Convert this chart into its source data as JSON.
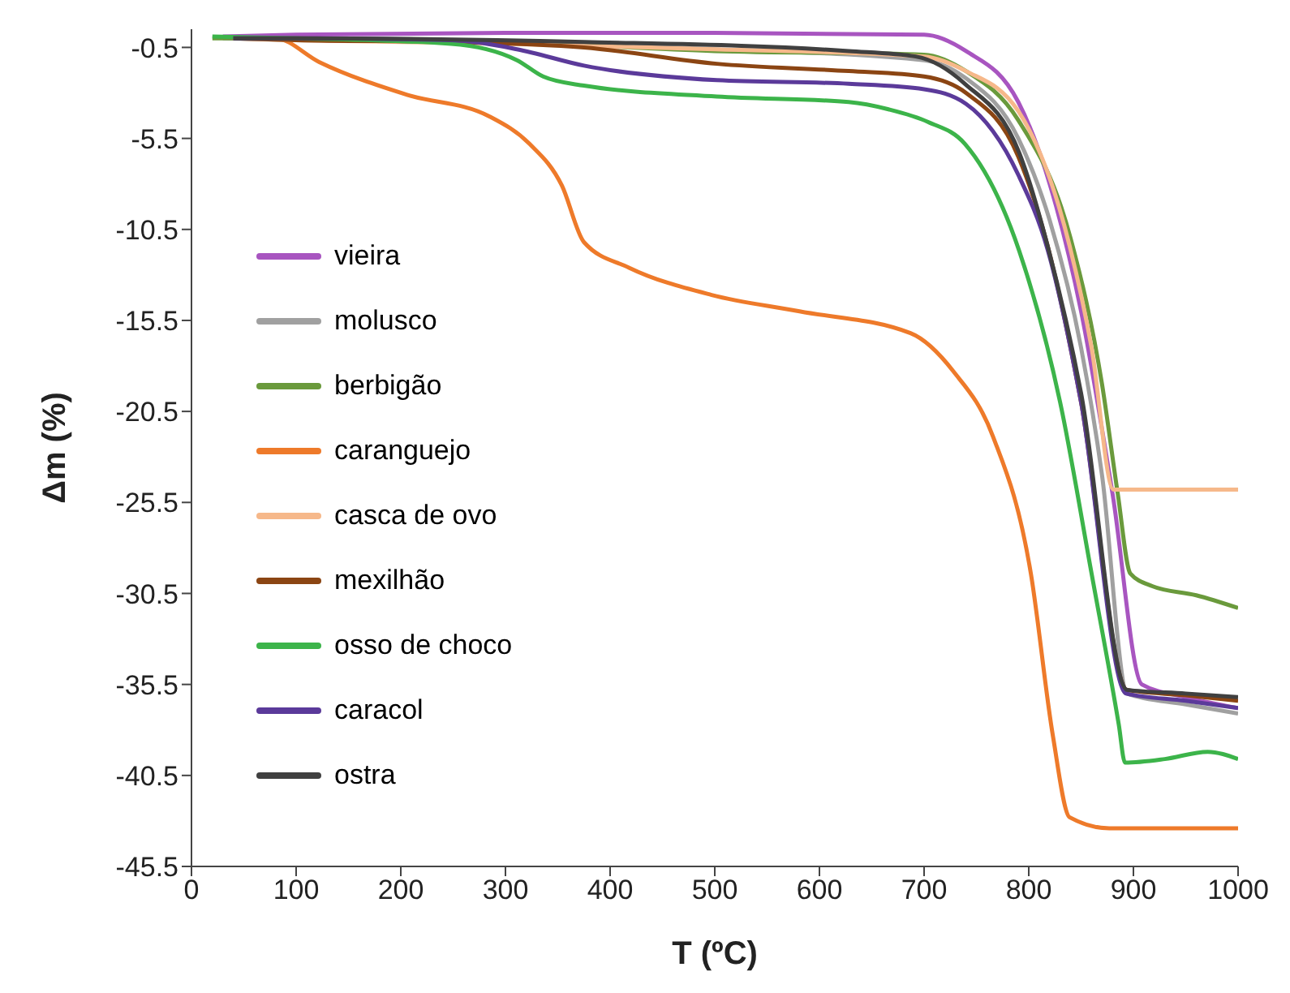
{
  "chart_data": {
    "type": "line",
    "xlabel": "T (ºC)",
    "ylabel": "Δm (%)",
    "xlim": [
      0,
      1000
    ],
    "xticks": [
      0,
      100,
      200,
      300,
      400,
      500,
      600,
      700,
      800,
      900,
      1000
    ],
    "ylim": [
      -45.5,
      0.5
    ],
    "yticks": [
      -0.5,
      -5.5,
      -10.5,
      -15.5,
      -20.5,
      -25.5,
      -30.5,
      -35.5,
      -40.5,
      -45.5
    ],
    "grid": false,
    "legend": "left",
    "marker": "none",
    "line_style": "solid",
    "series": [
      {
        "name": "vieira",
        "color": "#a855c0",
        "x": [
          30,
          100,
          300,
          500,
          700,
          740,
          790,
          820,
          850,
          880,
          908,
          950,
          1000
        ],
        "values": [
          0.1,
          0.2,
          0.3,
          0.3,
          0.2,
          -0.7,
          -3.5,
          -8,
          -15,
          -25,
          -35.5,
          -36.2,
          -36.8
        ]
      },
      {
        "name": "molusco",
        "color": "#a0a0a0",
        "x": [
          30,
          100,
          300,
          500,
          700,
          740,
          790,
          820,
          850,
          870,
          894,
          950,
          1000
        ],
        "values": [
          0,
          -0.1,
          -0.2,
          -0.6,
          -1.2,
          -2.2,
          -5.5,
          -10,
          -17,
          -24,
          -36,
          -36.6,
          -37.1
        ]
      },
      {
        "name": "berbigão",
        "color": "#6a9a3c",
        "x": [
          20,
          100,
          300,
          500,
          700,
          740,
          790,
          840,
          870,
          885,
          897,
          918,
          960,
          1000
        ],
        "values": [
          0,
          0,
          -0.2,
          -0.7,
          -0.9,
          -1.8,
          -4.5,
          -11,
          -19,
          -25,
          -29.4,
          -30.1,
          -30.6,
          -31.3
        ]
      },
      {
        "name": "caranguejo",
        "color": "#ee7a2a",
        "x": [
          50,
          80,
          122,
          206,
          285,
          323,
          354,
          375,
          418,
          497,
          581,
          687,
          728,
          766,
          802,
          823,
          839,
          877,
          1000
        ],
        "values": [
          0,
          0,
          -1.3,
          -3.1,
          -4.3,
          -5.8,
          -8.1,
          -11.2,
          -12.6,
          -14.1,
          -15,
          -16.2,
          -18.3,
          -21.9,
          -29.4,
          -38.3,
          -42.8,
          -43.4,
          -43.4
        ]
      },
      {
        "name": "casca de ovo",
        "color": "#f6b88a",
        "x": [
          40,
          100,
          300,
          500,
          700,
          740,
          790,
          839,
          860,
          881,
          1000
        ],
        "values": [
          0,
          -0.1,
          -0.3,
          -0.6,
          -1,
          -1.8,
          -4,
          -11.4,
          -17,
          -24.8,
          -24.8
        ]
      },
      {
        "name": "mexilhão",
        "color": "#8b4513",
        "x": [
          40,
          100,
          250,
          375,
          502,
          628,
          700,
          740,
          790,
          818,
          850,
          894,
          950,
          1000
        ],
        "values": [
          0,
          -0.1,
          -0.2,
          -0.5,
          -1.4,
          -1.8,
          -2.1,
          -3,
          -6.5,
          -11.4,
          -20,
          -35.8,
          -36.1,
          -36.4
        ]
      },
      {
        "name": "osso de choco",
        "color": "#3cb44a",
        "x": [
          20,
          100,
          248,
          311,
          336,
          375,
          502,
          628,
          666,
          704,
          739,
          791,
          830,
          860,
          886,
          892,
          930,
          971,
          1000
        ],
        "values": [
          0.1,
          0,
          -0.3,
          -1.2,
          -2.1,
          -2.6,
          -3.2,
          -3.5,
          -3.9,
          -4.6,
          -5.8,
          -11.7,
          -20,
          -29.4,
          -37.7,
          -39.8,
          -39.6,
          -39.2,
          -39.6
        ]
      },
      {
        "name": "caracol",
        "color": "#5b3a9a",
        "x": [
          40,
          100,
          248,
          311,
          375,
          502,
          628,
          700,
          740,
          790,
          818,
          850,
          893,
          950,
          1000
        ],
        "values": [
          0,
          0,
          -0.1,
          -0.6,
          -1.5,
          -2.3,
          -2.5,
          -2.8,
          -3.6,
          -7.5,
          -11.6,
          -20,
          -36,
          -36.4,
          -36.8
        ]
      },
      {
        "name": "ostra",
        "color": "#404040",
        "x": [
          40,
          100,
          375,
          628,
          692,
          739,
          791,
          818,
          850,
          894,
          950,
          1000
        ],
        "values": [
          0,
          0,
          -0.2,
          -0.7,
          -1,
          -2.5,
          -6.3,
          -11.4,
          -19.5,
          -35.8,
          -36,
          -36.2
        ]
      }
    ]
  }
}
